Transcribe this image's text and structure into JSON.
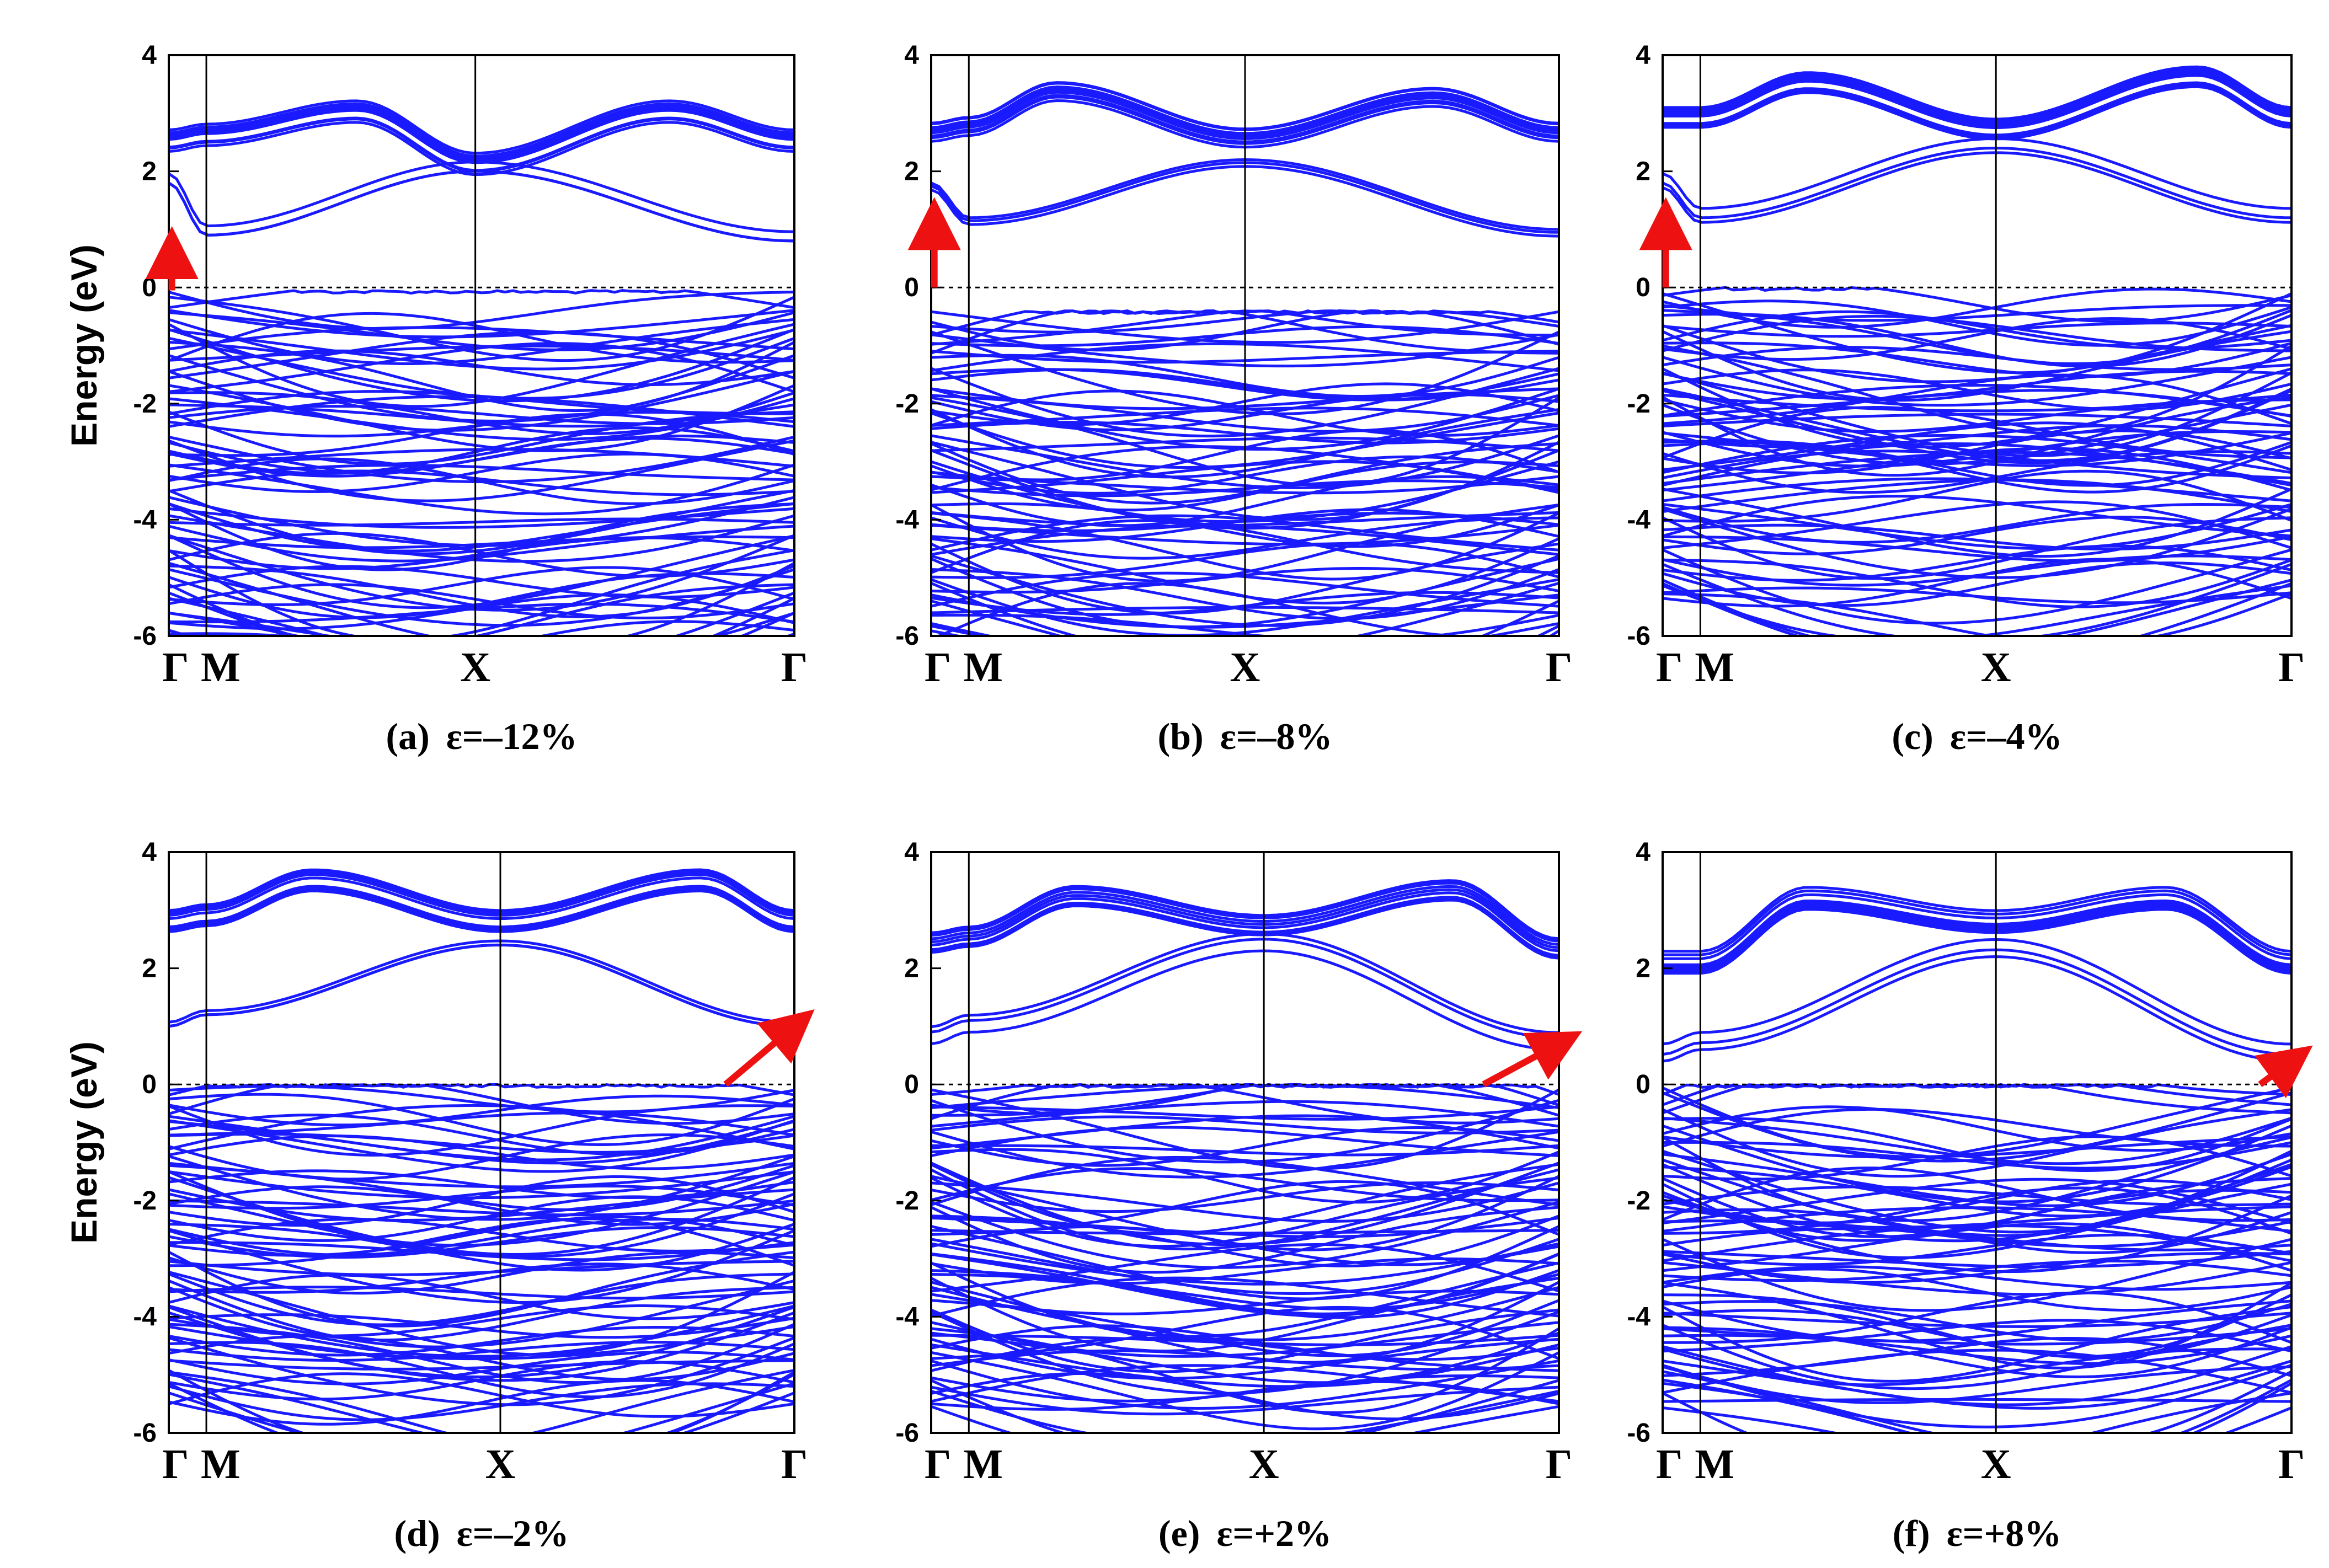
{
  "figure": {
    "ylabel": "Energy (eV)"
  },
  "colors": {
    "band": "#1a1aff",
    "axis": "#000000",
    "arrow": "#ee1111",
    "fermi": "#000000"
  },
  "chart_data": [
    {
      "id": "a",
      "panel_label": "(a)",
      "strain_label": "ε=–12%",
      "type": "line",
      "ylim": [
        -6,
        4
      ],
      "yticks": [
        -6,
        -4,
        -2,
        0,
        2,
        4
      ],
      "xticks": [
        {
          "label": "Γ",
          "x": 0.0
        },
        {
          "label": "M",
          "x": 0.06
        },
        {
          "label": "X",
          "x": 0.49
        },
        {
          "label": "Γ",
          "x": 1.0
        }
      ],
      "fermi_level": 0,
      "arrow": {
        "from": [
          0.005,
          -0.05
        ],
        "to": [
          0.005,
          0.6
        ]
      },
      "conduction_samples": [
        {
          "x": [
            0,
            0.06,
            0.49,
            1.0
          ],
          "y": [
            1.8,
            0.9,
            2.0,
            0.8
          ]
        },
        {
          "x": [
            0,
            0.06,
            0.3,
            0.49,
            0.8,
            1.0
          ],
          "y": [
            2.4,
            2.5,
            2.9,
            2.0,
            2.9,
            2.4
          ]
        }
      ],
      "valence_top": -0.05,
      "valence_bottom": -6.0
    },
    {
      "id": "b",
      "panel_label": "(b)",
      "strain_label": "ε=–8%",
      "type": "line",
      "ylim": [
        -6,
        4
      ],
      "yticks": [
        -6,
        -4,
        -2,
        0,
        2,
        4
      ],
      "xticks": [
        {
          "label": "Γ",
          "x": 0.0
        },
        {
          "label": "M",
          "x": 0.06
        },
        {
          "label": "X",
          "x": 0.5
        },
        {
          "label": "Γ",
          "x": 1.0
        }
      ],
      "fermi_level": 0,
      "arrow": {
        "from": [
          0.005,
          0.0
        ],
        "to": [
          0.005,
          1.1
        ]
      },
      "conduction_samples": [
        {
          "x": [
            0,
            0.06,
            0.5,
            1.0
          ],
          "y": [
            1.8,
            1.2,
            2.2,
            1.0
          ]
        },
        {
          "x": [
            0,
            0.06,
            0.2,
            0.5,
            0.8,
            1.0
          ],
          "y": [
            2.6,
            2.7,
            3.3,
            2.5,
            3.2,
            2.6
          ]
        }
      ],
      "valence_top": -0.4,
      "valence_bottom": -6.0
    },
    {
      "id": "c",
      "panel_label": "(c)",
      "strain_label": "ε=–4%",
      "type": "line",
      "ylim": [
        -6,
        4
      ],
      "yticks": [
        -6,
        -4,
        -2,
        0,
        2,
        4
      ],
      "xticks": [
        {
          "label": "Γ",
          "x": 0.0
        },
        {
          "label": "M",
          "x": 0.06
        },
        {
          "label": "X",
          "x": 0.53
        },
        {
          "label": "Γ",
          "x": 1.0
        }
      ],
      "fermi_level": 0,
      "arrow": {
        "from": [
          0.005,
          0.0
        ],
        "to": [
          0.005,
          1.1
        ]
      },
      "conduction_samples": [
        {
          "x": [
            0,
            0.06,
            0.53,
            1.0
          ],
          "y": [
            1.8,
            1.2,
            2.4,
            1.2
          ]
        },
        {
          "x": [
            0,
            0.06,
            0.23,
            0.53,
            0.85,
            1.0
          ],
          "y": [
            2.8,
            2.8,
            3.4,
            2.6,
            3.5,
            2.8
          ]
        }
      ],
      "valence_top": 0.0,
      "valence_bottom": -5.4
    },
    {
      "id": "d",
      "panel_label": "(d)",
      "strain_label": "ε=–2%",
      "type": "line",
      "ylim": [
        -6,
        4
      ],
      "yticks": [
        -6,
        -4,
        -2,
        0,
        2,
        4
      ],
      "xticks": [
        {
          "label": "Γ",
          "x": 0.0
        },
        {
          "label": "M",
          "x": 0.06
        },
        {
          "label": "X",
          "x": 0.53
        },
        {
          "label": "Γ",
          "x": 1.0
        }
      ],
      "fermi_level": 0,
      "arrow": {
        "from": [
          0.89,
          0.0
        ],
        "to": [
          1.0,
          1.0
        ]
      },
      "conduction_samples": [
        {
          "x": [
            0,
            0.06,
            0.53,
            1.0
          ],
          "y": [
            1.0,
            1.2,
            2.4,
            1.0
          ]
        },
        {
          "x": [
            0,
            0.06,
            0.23,
            0.53,
            0.85,
            1.0
          ],
          "y": [
            2.7,
            2.8,
            3.4,
            2.7,
            3.4,
            2.7
          ]
        }
      ],
      "valence_top": 0.0,
      "valence_bottom": -5.5
    },
    {
      "id": "e",
      "panel_label": "(e)",
      "strain_label": "ε=+2%",
      "type": "line",
      "ylim": [
        -6,
        4
      ],
      "yticks": [
        -6,
        -4,
        -2,
        0,
        2,
        4
      ],
      "xticks": [
        {
          "label": "Γ",
          "x": 0.0
        },
        {
          "label": "M",
          "x": 0.06
        },
        {
          "label": "X",
          "x": 0.53
        },
        {
          "label": "Γ",
          "x": 1.0
        }
      ],
      "fermi_level": 0,
      "arrow": {
        "from": [
          0.88,
          0.0
        ],
        "to": [
          1.0,
          0.7
        ]
      },
      "conduction_samples": [
        {
          "x": [
            0,
            0.06,
            0.53,
            1.0
          ],
          "y": [
            0.7,
            0.9,
            2.3,
            0.6
          ]
        },
        {
          "x": [
            0,
            0.06,
            0.23,
            0.53,
            0.83,
            1.0
          ],
          "y": [
            2.4,
            2.5,
            3.2,
            2.7,
            3.3,
            2.3
          ]
        }
      ],
      "valence_top": 0.0,
      "valence_bottom": -5.6
    },
    {
      "id": "f",
      "panel_label": "(f)",
      "strain_label": "ε=+8%",
      "type": "line",
      "ylim": [
        -6,
        4
      ],
      "yticks": [
        -6,
        -4,
        -2,
        0,
        2,
        4
      ],
      "xticks": [
        {
          "label": "Γ",
          "x": 0.0
        },
        {
          "label": "M",
          "x": 0.06
        },
        {
          "label": "X",
          "x": 0.53
        },
        {
          "label": "Γ",
          "x": 1.0
        }
      ],
      "fermi_level": 0,
      "arrow": {
        "from": [
          0.95,
          0.0
        ],
        "to": [
          1.0,
          0.4
        ]
      },
      "conduction_samples": [
        {
          "x": [
            0,
            0.06,
            0.53,
            1.0
          ],
          "y": [
            0.4,
            0.6,
            2.2,
            0.4
          ]
        },
        {
          "x": [
            0,
            0.06,
            0.23,
            0.53,
            0.8,
            1.0
          ],
          "y": [
            2.0,
            2.0,
            3.1,
            2.7,
            3.1,
            2.0
          ]
        }
      ],
      "valence_top": 0.0,
      "valence_bottom": -5.5
    }
  ]
}
